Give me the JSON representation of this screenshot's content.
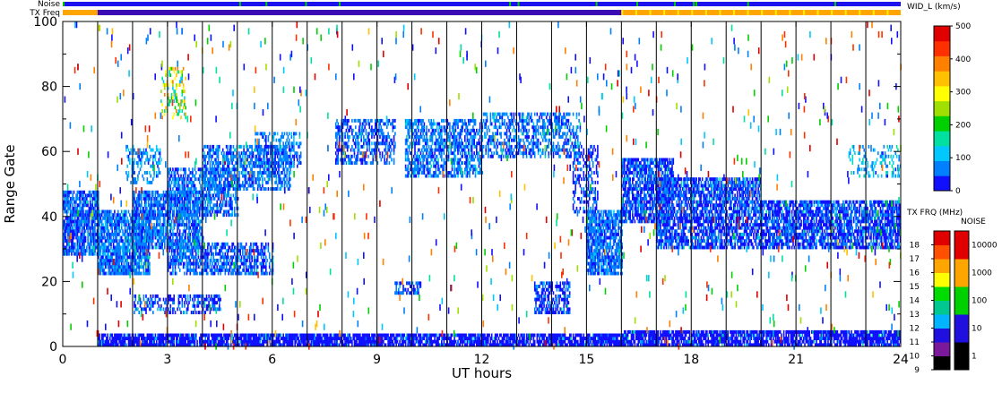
{
  "chart_data": {
    "type": "heatmap",
    "xlabel": "UT hours",
    "ylabel": "Range Gate",
    "xlim": [
      0,
      24
    ],
    "ylim": [
      0,
      100
    ],
    "x_ticks": [
      "0",
      "3",
      "6",
      "9",
      "12",
      "15",
      "18",
      "21",
      "24"
    ],
    "y_ticks": [
      "0",
      "20",
      "40",
      "60",
      "80",
      "100"
    ],
    "hour_lines": [
      1,
      2,
      3,
      4,
      5,
      6,
      7,
      8,
      9,
      10,
      11,
      12,
      13,
      14,
      15,
      16,
      17,
      18,
      19,
      20,
      21,
      22,
      23
    ],
    "top_bars": {
      "noise_label": "Noise",
      "txfreq_label": "TX Freq",
      "noise_color": "#1c10ee",
      "txfreq_segments": [
        {
          "from": 0,
          "to": 1,
          "color": "#ffa500"
        },
        {
          "from": 1,
          "to": 16,
          "color": "#3c0ab4"
        },
        {
          "from": 16,
          "to": 24,
          "color": "#ffa500"
        }
      ]
    },
    "colorbar_width": {
      "title": "WID_L (km/s)",
      "ticks": [
        "0",
        "100",
        "200",
        "300",
        "400",
        "500"
      ],
      "range": [
        0,
        500
      ],
      "colors": [
        "#1010ff",
        "#0080ff",
        "#00c8ff",
        "#00e0a0",
        "#00d000",
        "#a0e000",
        "#ffff00",
        "#ffc000",
        "#ff8000",
        "#ff3000",
        "#e00000"
      ]
    },
    "colorbar_txfreq": {
      "title": "TX FRQ (MHz)",
      "ticks": [
        "9",
        "10",
        "11",
        "12",
        "13",
        "14",
        "15",
        "16",
        "17",
        "18"
      ],
      "colors": [
        "#000000",
        "#7a1a9a",
        "#2010e0",
        "#00b4ff",
        "#00c890",
        "#00dc00",
        "#ffff00",
        "#ffa500",
        "#ff5000",
        "#e00000"
      ]
    },
    "colorbar_noise": {
      "title": "NOISE",
      "ticks": [
        "1",
        "10",
        "100",
        "1000",
        "10000"
      ],
      "colors": [
        "#000000",
        "#2010e0",
        "#00d000",
        "#ffa500",
        "#e00000"
      ]
    },
    "echo_regions": [
      {
        "x": [
          0.0,
          1.0
        ],
        "y": [
          28,
          48
        ],
        "value": 50,
        "density": 0.8
      },
      {
        "x": [
          1.0,
          2.5
        ],
        "y": [
          22,
          42
        ],
        "value": 60,
        "density": 0.8
      },
      {
        "x": [
          2.0,
          4.0
        ],
        "y": [
          30,
          48
        ],
        "value": 60,
        "density": 0.7
      },
      {
        "x": [
          3.0,
          5.0
        ],
        "y": [
          40,
          55
        ],
        "value": 60,
        "density": 0.6
      },
      {
        "x": [
          4.0,
          6.5
        ],
        "y": [
          48,
          62
        ],
        "value": 60,
        "density": 0.6
      },
      {
        "x": [
          5.5,
          6.8
        ],
        "y": [
          55,
          66
        ],
        "value": 60,
        "density": 0.4
      },
      {
        "x": [
          3.0,
          6.0
        ],
        "y": [
          22,
          32
        ],
        "value": 50,
        "density": 0.6
      },
      {
        "x": [
          2.0,
          4.5
        ],
        "y": [
          10,
          16
        ],
        "value": 40,
        "density": 0.5
      },
      {
        "x": [
          1.8,
          2.8
        ],
        "y": [
          50,
          62
        ],
        "value": 80,
        "density": 0.3
      },
      {
        "x": [
          2.8,
          3.5
        ],
        "y": [
          70,
          86
        ],
        "value": 250,
        "density": 0.3
      },
      {
        "x": [
          7.8,
          9.5
        ],
        "y": [
          56,
          70
        ],
        "value": 50,
        "density": 0.5
      },
      {
        "x": [
          9.8,
          12.0
        ],
        "y": [
          52,
          70
        ],
        "value": 60,
        "density": 0.6
      },
      {
        "x": [
          12.0,
          14.8
        ],
        "y": [
          58,
          72
        ],
        "value": 60,
        "density": 0.5
      },
      {
        "x": [
          14.6,
          15.3
        ],
        "y": [
          40,
          62
        ],
        "value": 40,
        "density": 0.4
      },
      {
        "x": [
          15.0,
          16.0
        ],
        "y": [
          22,
          42
        ],
        "value": 60,
        "density": 0.8
      },
      {
        "x": [
          16.0,
          17.5
        ],
        "y": [
          38,
          58
        ],
        "value": 40,
        "density": 0.7
      },
      {
        "x": [
          17.0,
          20.0
        ],
        "y": [
          30,
          52
        ],
        "value": 40,
        "density": 0.7
      },
      {
        "x": [
          20.0,
          24.0
        ],
        "y": [
          30,
          45
        ],
        "value": 40,
        "density": 0.75
      },
      {
        "x": [
          22.5,
          24.0
        ],
        "y": [
          52,
          62
        ],
        "value": 100,
        "density": 0.3
      },
      {
        "x": [
          13.5,
          14.5
        ],
        "y": [
          10,
          20
        ],
        "value": 40,
        "density": 0.6
      },
      {
        "x": [
          9.5,
          10.2
        ],
        "y": [
          16,
          20
        ],
        "value": 50,
        "density": 0.5
      },
      {
        "x": [
          1.0,
          16.0
        ],
        "y": [
          0,
          4
        ],
        "value": 30,
        "density": 0.85
      },
      {
        "x": [
          16.0,
          24.0
        ],
        "y": [
          0,
          5
        ],
        "value": 30,
        "density": 0.8
      }
    ]
  }
}
